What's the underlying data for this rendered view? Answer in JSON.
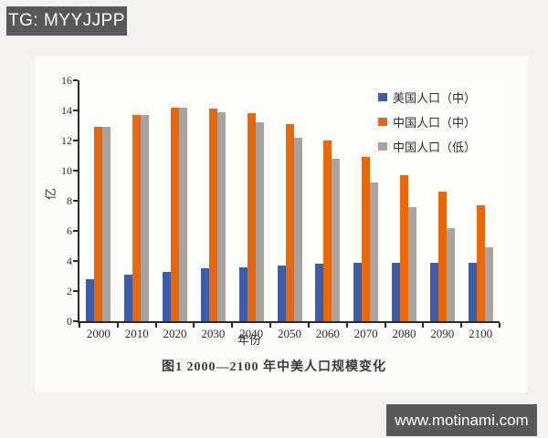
{
  "badges": {
    "source_tag": "TG: MYYJJPP",
    "watermark": "www.motinami.com"
  },
  "chart_data": {
    "type": "bar",
    "caption": "图1  2000—2100 年中美人口规模变化",
    "xlabel": "年份",
    "ylabel": "亿",
    "categories": [
      "2000",
      "2010",
      "2020",
      "2030",
      "2040",
      "2050",
      "2060",
      "2070",
      "2080",
      "2090",
      "2100"
    ],
    "series": [
      {
        "name": "美国人口（中）",
        "color": "#3c5ca8",
        "values": [
          2.8,
          3.1,
          3.3,
          3.5,
          3.6,
          3.7,
          3.8,
          3.9,
          3.9,
          3.9,
          3.9
        ]
      },
      {
        "name": "中国人口（中）",
        "color": "#e8680e",
        "values": [
          12.9,
          13.7,
          14.2,
          14.1,
          13.8,
          13.1,
          12.0,
          10.9,
          9.7,
          8.6,
          7.7
        ]
      },
      {
        "name": "中国人口（低）",
        "color": "#a8a39e",
        "values": [
          12.9,
          13.7,
          14.2,
          13.9,
          13.2,
          12.2,
          10.8,
          9.2,
          7.6,
          6.2,
          4.9
        ]
      }
    ],
    "ylim": [
      0,
      16
    ],
    "yticks": [
      0,
      2,
      4,
      6,
      8,
      10,
      12,
      14,
      16
    ],
    "grid": false,
    "legend_position": "top-right"
  },
  "colors": {
    "badge_bg": "#58585a",
    "axis": "#2b2b2b",
    "page_bg": "#f3f2f0",
    "plot_bg": "#fdfdfc"
  }
}
